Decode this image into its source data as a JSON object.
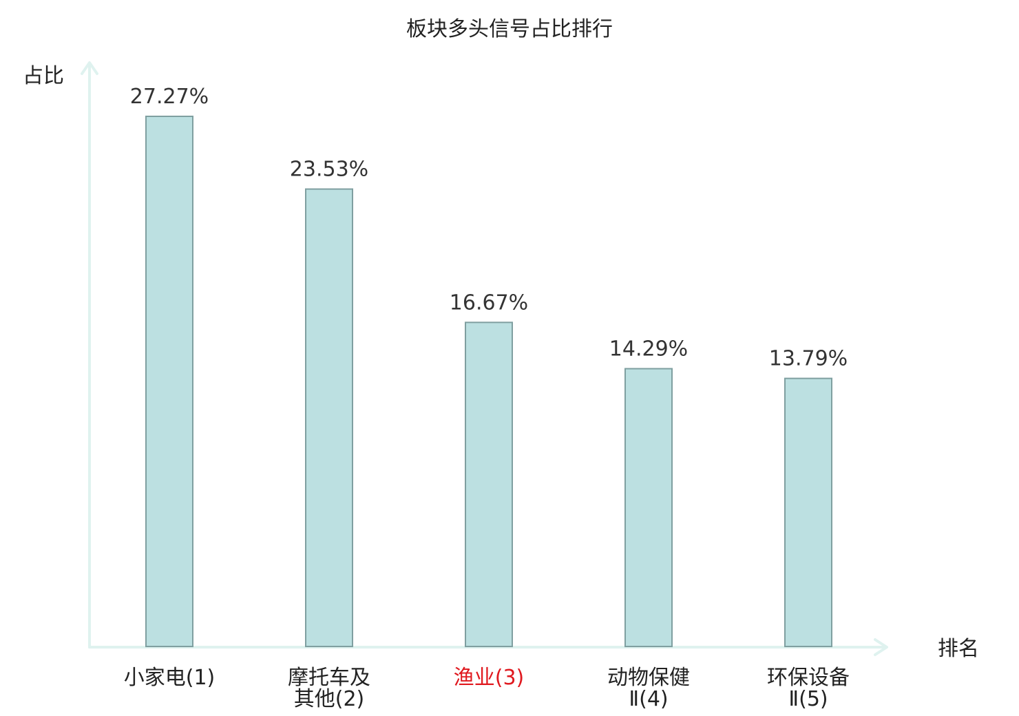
{
  "chart_data": {
    "type": "bar",
    "title": "板块多头信号占比排行",
    "xlabel": "排名",
    "ylabel": "占比",
    "grid": false,
    "legend": "none",
    "ylim": [
      0,
      27.27
    ],
    "categories": [
      [
        "小家电(1)"
      ],
      [
        "摩托车及",
        "其他(2)"
      ],
      [
        "渔业(3)"
      ],
      [
        "动物保健",
        "Ⅱ(4)"
      ],
      [
        "环保设备",
        "Ⅱ(5)"
      ]
    ],
    "values": [
      27.27,
      23.53,
      16.67,
      14.29,
      13.79
    ],
    "value_labels": [
      "27.27%",
      "23.53%",
      "16.67%",
      "14.29%",
      "13.79%"
    ],
    "highlight_index": 2,
    "colors": {
      "bar_fill": "#bce0e1",
      "bar_stroke": "#7f9fa0",
      "axis": "#dff2ef",
      "highlight_text": "#e0191f",
      "text": "#222222"
    }
  }
}
